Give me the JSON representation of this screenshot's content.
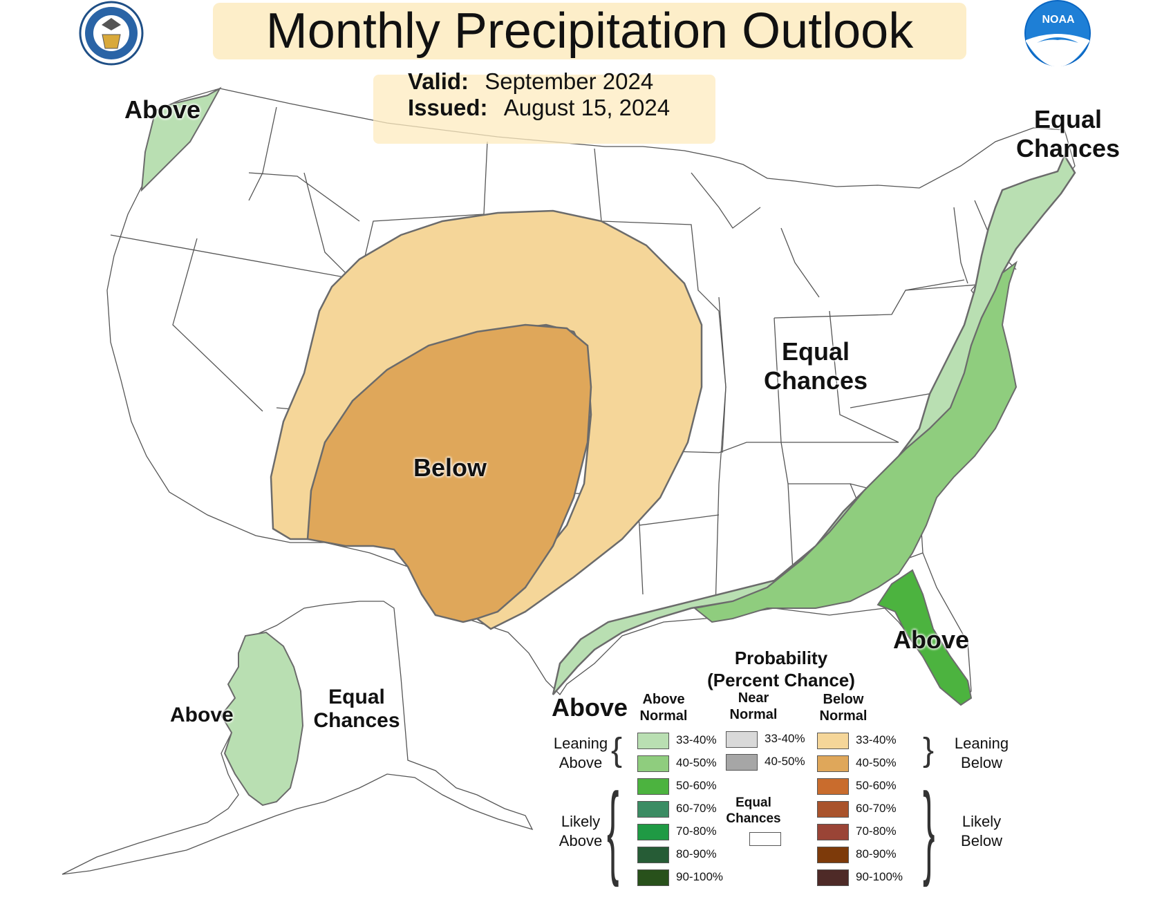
{
  "header": {
    "title": "Monthly Precipitation Outlook",
    "valid_key": "Valid:",
    "valid_value": "September 2024",
    "issued_key": "Issued:",
    "issued_value": "August 15, 2024"
  },
  "logos": {
    "commerce_seal": "department-of-commerce-seal-icon",
    "noaa": "NOAA"
  },
  "regions": {
    "pacific_nw": "Above",
    "northeast_line1": "Equal",
    "northeast_line2": "Chances",
    "central_line1": "Equal",
    "central_line2": "Chances",
    "southwest": "Below",
    "florida": "Above",
    "gulf": "Above",
    "alaska_west": "Above",
    "alaska_line1": "Equal",
    "alaska_line2": "Chances"
  },
  "legend": {
    "title_line1": "Probability",
    "title_line2": "(Percent Chance)",
    "above_head_1": "Above",
    "above_head_2": "Normal",
    "near_head_1": "Near",
    "near_head_2": "Normal",
    "below_head_1": "Below",
    "below_head_2": "Normal",
    "leaning_above_1": "Leaning",
    "leaning_above_2": "Above",
    "likely_above_1": "Likely",
    "likely_above_2": "Above",
    "leaning_below_1": "Leaning",
    "leaning_below_2": "Below",
    "likely_below_1": "Likely",
    "likely_below_2": "Below",
    "equal_chances_1": "Equal",
    "equal_chances_2": "Chances",
    "above": [
      {
        "label": "33-40%",
        "color": "#b9dfb2"
      },
      {
        "label": "40-50%",
        "color": "#8fcd7e"
      },
      {
        "label": "50-60%",
        "color": "#4cb33f"
      },
      {
        "label": "60-70%",
        "color": "#3b8c63"
      },
      {
        "label": "70-80%",
        "color": "#1f9a44"
      },
      {
        "label": "80-90%",
        "color": "#265c36"
      },
      {
        "label": "90-100%",
        "color": "#28511b"
      }
    ],
    "near": [
      {
        "label": "33-40%",
        "color": "#d9d9d9"
      },
      {
        "label": "40-50%",
        "color": "#a6a6a6"
      }
    ],
    "below": [
      {
        "label": "33-40%",
        "color": "#f5d699"
      },
      {
        "label": "40-50%",
        "color": "#dfa75a"
      },
      {
        "label": "50-60%",
        "color": "#c96c2d"
      },
      {
        "label": "60-70%",
        "color": "#a9532c"
      },
      {
        "label": "70-80%",
        "color": "#9a4436"
      },
      {
        "label": "80-90%",
        "color": "#7d3a0a"
      },
      {
        "label": "90-100%",
        "color": "#4e2a27"
      }
    ]
  },
  "colors": {
    "above_33_40": "#b9dfb2",
    "above_40_50": "#8fcd7e",
    "above_50_60": "#4cb33f",
    "below_33_40": "#f5d699",
    "below_40_50": "#dfa75a"
  }
}
